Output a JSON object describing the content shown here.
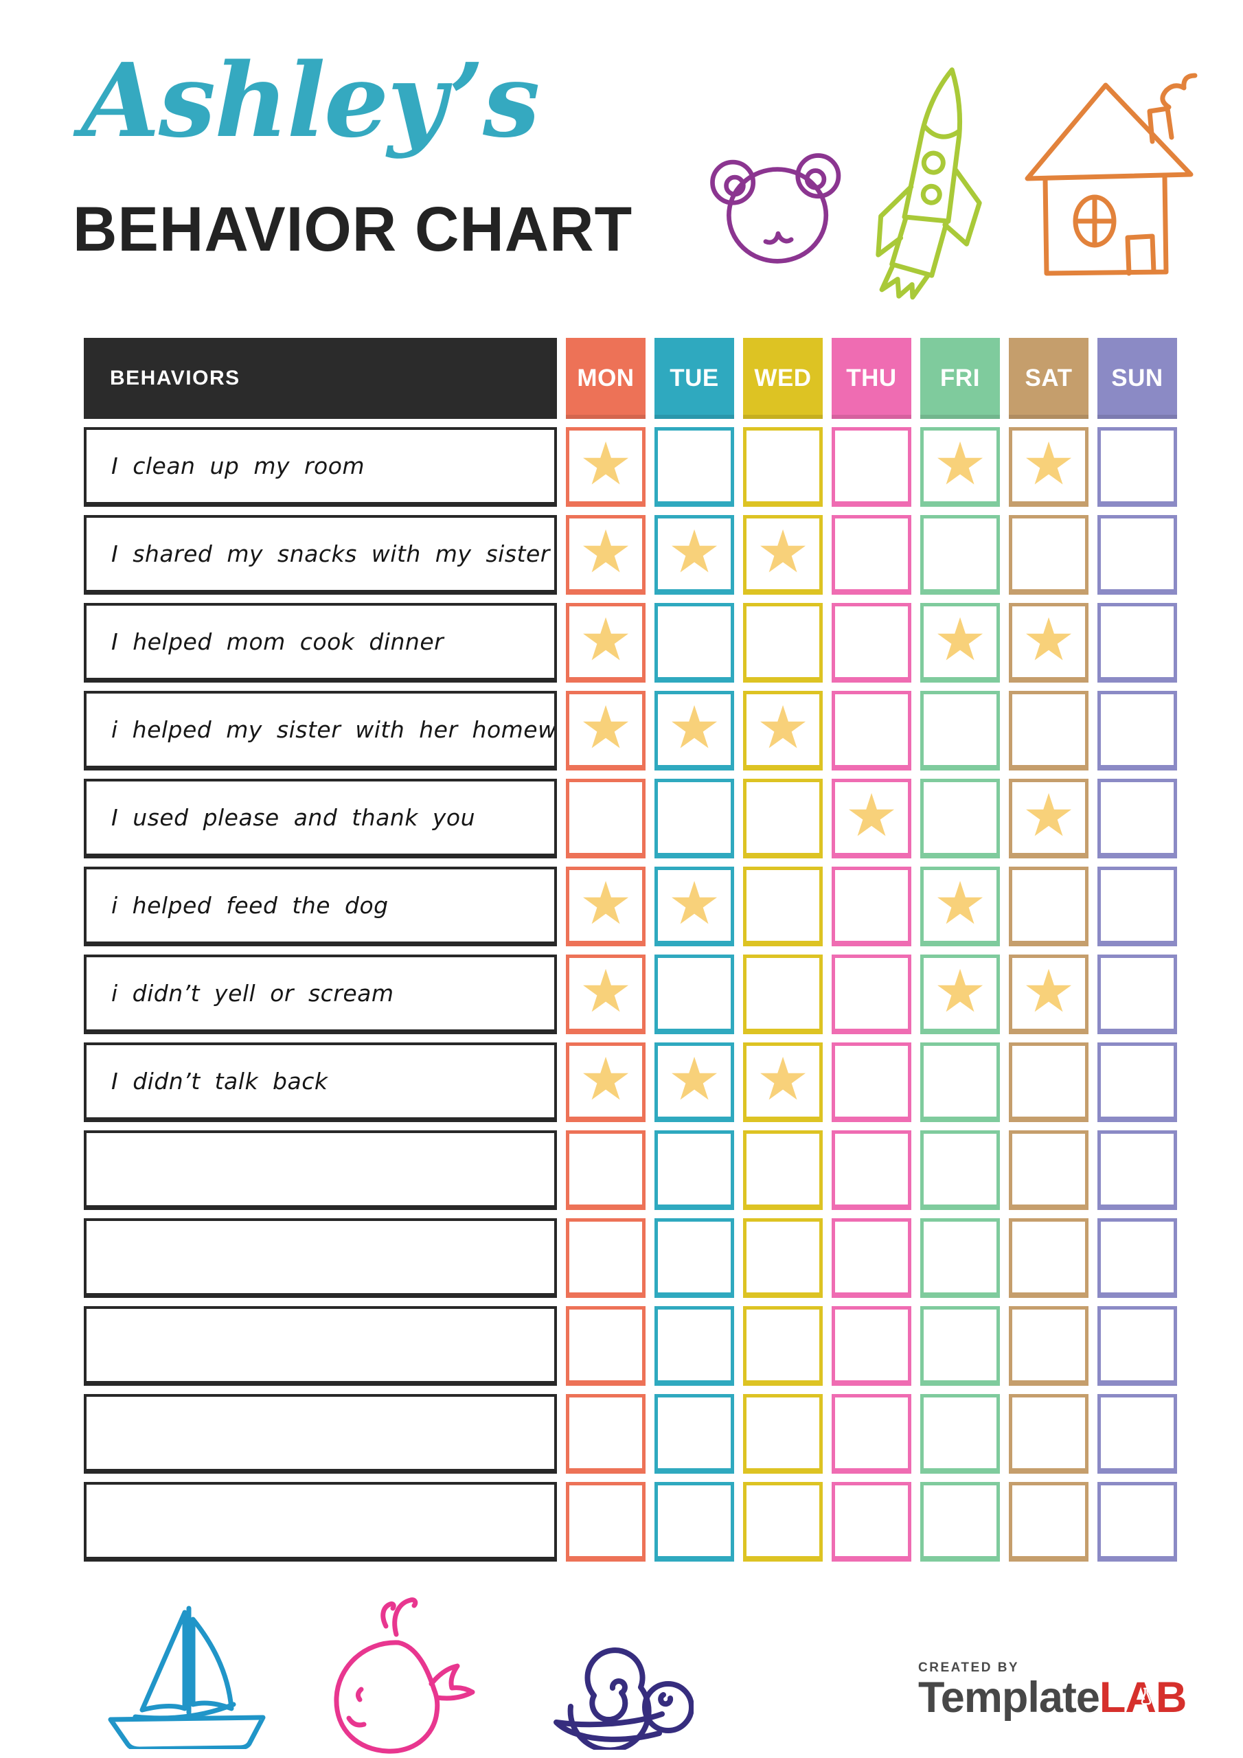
{
  "header": {
    "child_name": "Ashley’s",
    "title": "BEHAVIOR CHART"
  },
  "decorations": {
    "top_icons": [
      "bear-doodle",
      "rocket-doodle",
      "house-doodle"
    ],
    "bottom_icons": [
      "sailboat-doodle",
      "whale-doodle",
      "snail-doodle"
    ],
    "colors": {
      "name_script": "#35a9c0",
      "bear": "#8b3590",
      "rocket": "#a9c938",
      "house": "#e2823b",
      "sailboat": "#2095c8",
      "whale": "#e8368f",
      "snail": "#362d7e"
    }
  },
  "table": {
    "behaviors_header": "BEHAVIORS",
    "star_color": "#f8d17a",
    "days": [
      {
        "label": "MON",
        "color": "#ed7257"
      },
      {
        "label": "TUE",
        "color": "#2fa9bf"
      },
      {
        "label": "WED",
        "color": "#ddc323"
      },
      {
        "label": "THU",
        "color": "#ef6cb2"
      },
      {
        "label": "FRI",
        "color": "#7fcb9d"
      },
      {
        "label": "SAT",
        "color": "#c59e6c"
      },
      {
        "label": "SUN",
        "color": "#8b8ac5"
      }
    ],
    "rows": [
      {
        "behavior": "I clean up my room",
        "stars": [
          "MON",
          "FRI",
          "SAT"
        ]
      },
      {
        "behavior": "I shared my snacks with my sister",
        "stars": [
          "MON",
          "TUE",
          "WED"
        ]
      },
      {
        "behavior": "I helped mom cook dinner",
        "stars": [
          "MON",
          "FRI",
          "SAT"
        ]
      },
      {
        "behavior": "i helped my sister with her homework",
        "stars": [
          "MON",
          "TUE",
          "WED"
        ]
      },
      {
        "behavior": "I used please and thank you",
        "stars": [
          "THU",
          "SAT"
        ]
      },
      {
        "behavior": "i helped feed the dog",
        "stars": [
          "MON",
          "TUE",
          "FRI"
        ]
      },
      {
        "behavior": "i didn’t yell or scream",
        "stars": [
          "MON",
          "FRI",
          "SAT"
        ]
      },
      {
        "behavior": "I didn’t talk back",
        "stars": [
          "MON",
          "TUE",
          "WED"
        ]
      },
      {
        "behavior": "",
        "stars": []
      },
      {
        "behavior": "",
        "stars": []
      },
      {
        "behavior": "",
        "stars": []
      },
      {
        "behavior": "",
        "stars": []
      },
      {
        "behavior": "",
        "stars": []
      }
    ]
  },
  "footer": {
    "created_by": "CREATED BY",
    "brand_name": "Template",
    "brand_suffix": "LAB"
  }
}
